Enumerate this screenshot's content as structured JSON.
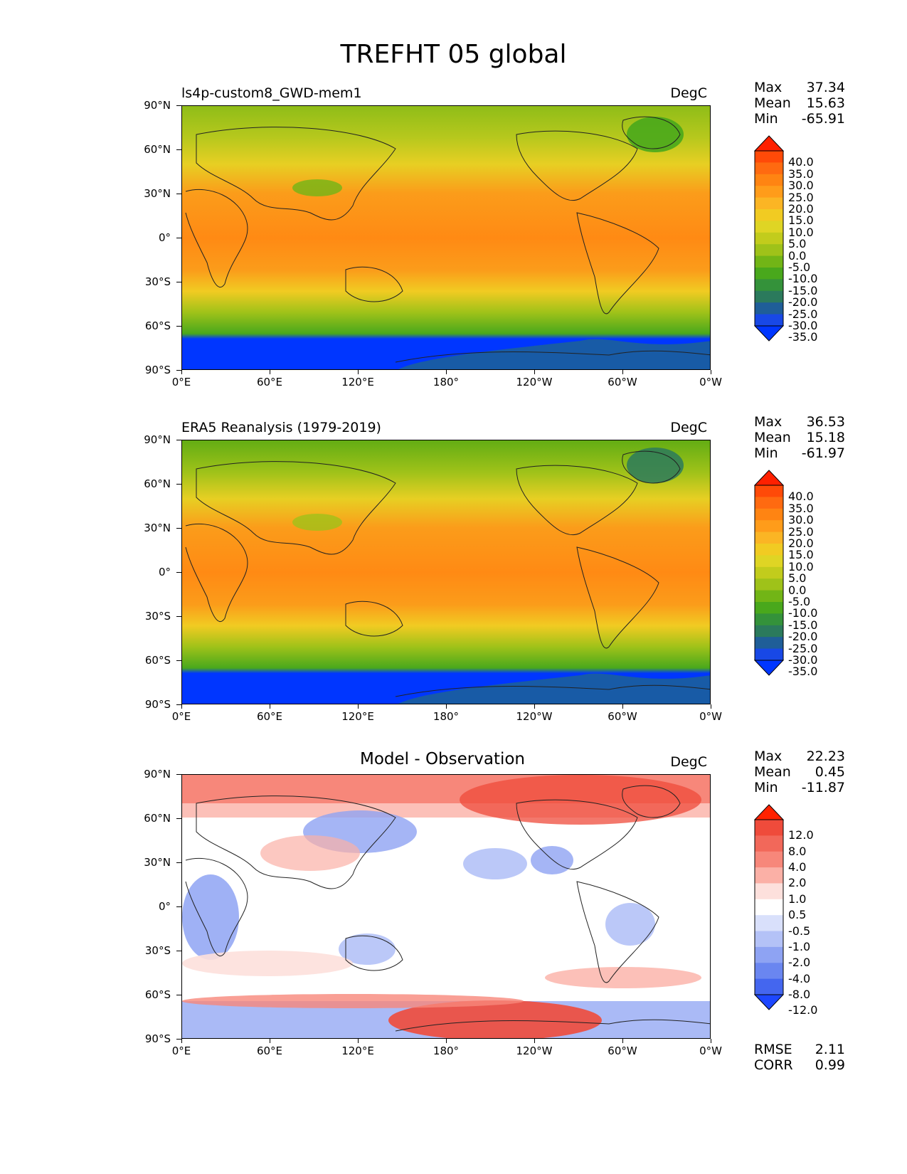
{
  "figure": {
    "title": "TREFHT 05 global",
    "y_ticks": [
      "90°N",
      "60°N",
      "30°N",
      "0°",
      "30°S",
      "60°S",
      "90°S"
    ],
    "x_ticks": [
      "0°E",
      "60°E",
      "120°E",
      "180°",
      "120°W",
      "60°W",
      "0°W"
    ]
  },
  "panels": [
    {
      "title": "ls4p-custom8_GWD-mem1",
      "units": "DegC",
      "stats": {
        "max_label": "Max",
        "max": "37.34",
        "mean_label": "Mean",
        "mean": "15.63",
        "min_label": "Min",
        "min": "-65.91"
      },
      "colorbar": {
        "labels": [
          "40.0",
          "35.0",
          "30.0",
          "25.0",
          "20.0",
          "15.0",
          "10.0",
          "5.0",
          "0.0",
          "-5.0",
          "-10.0",
          "-15.0",
          "-20.0",
          "-25.0",
          "-30.0",
          "-35.0"
        ],
        "colors": [
          "#ff2000",
          "#ff4a08",
          "#ff6a10",
          "#ff8412",
          "#ff9c1a",
          "#fbb524",
          "#f1cb22",
          "#dfd524",
          "#c2cc1c",
          "#9fc219",
          "#72b516",
          "#49a81c",
          "#34923a",
          "#2b7a5c",
          "#1f5e98",
          "#1848e6",
          "#0036ff"
        ]
      }
    },
    {
      "title": "ERA5 Reanalysis (1979-2019)",
      "units": "DegC",
      "stats": {
        "max_label": "Max",
        "max": "36.53",
        "mean_label": "Mean",
        "mean": "15.18",
        "min_label": "Min",
        "min": "-61.97"
      },
      "colorbar": {
        "labels": [
          "40.0",
          "35.0",
          "30.0",
          "25.0",
          "20.0",
          "15.0",
          "10.0",
          "5.0",
          "0.0",
          "-5.0",
          "-10.0",
          "-15.0",
          "-20.0",
          "-25.0",
          "-30.0",
          "-35.0"
        ],
        "colors": [
          "#ff2000",
          "#ff4a08",
          "#ff6a10",
          "#ff8412",
          "#ff9c1a",
          "#fbb524",
          "#f1cb22",
          "#dfd524",
          "#c2cc1c",
          "#9fc219",
          "#72b516",
          "#49a81c",
          "#34923a",
          "#2b7a5c",
          "#1f5e98",
          "#1848e6",
          "#0036ff"
        ]
      }
    },
    {
      "title": "Model - Observation",
      "units": "DegC",
      "stats": {
        "max_label": "Max",
        "max": "22.23",
        "mean_label": "Mean",
        "mean": "0.45",
        "min_label": "Min",
        "min": "-11.87"
      },
      "colorbar": {
        "labels": [
          "12.0",
          "8.0",
          "4.0",
          "2.0",
          "1.0",
          "0.5",
          "-0.5",
          "-1.0",
          "-2.0",
          "-4.0",
          "-8.0",
          "-12.0"
        ],
        "colors": [
          "#ff2200",
          "#ef4b3b",
          "#f2685a",
          "#f7877a",
          "#fbb0a6",
          "#fde0dc",
          "#ffffff",
          "#d9e0fb",
          "#b4c2f7",
          "#8ea3f3",
          "#6a86f0",
          "#4466ef",
          "#1d47ff"
        ]
      },
      "rmse_label": "RMSE",
      "rmse": "2.11",
      "corr_label": "CORR",
      "corr": "0.99"
    }
  ]
}
